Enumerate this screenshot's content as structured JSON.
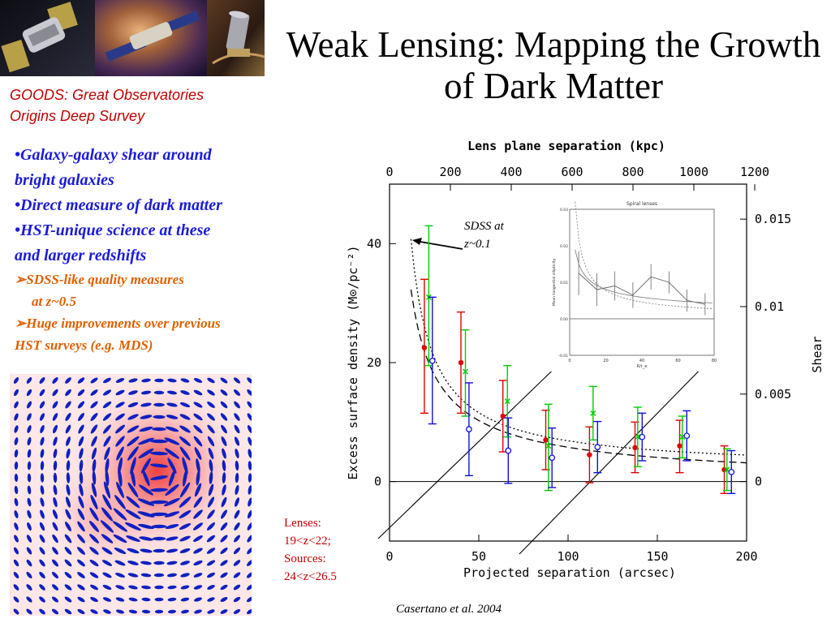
{
  "slide": {
    "title": "Weak Lensing: Mapping the Growth of Dark Matter",
    "goods_line1": "GOODS: Great Observatories",
    "goods_line2": "Origins Deep Survey",
    "bullets": {
      "b1_line1": "•Galaxy-galaxy shear around",
      "b1_line2": "bright galaxies",
      "b2": "•Direct measure of dark matter",
      "b3_line1": "•HST-unique science at these",
      "b3_line2": "and larger redshifts",
      "s1_line1": "SDSS-like quality measures",
      "s1_line2": "at z~0.5",
      "s2_line1": "Huge improvements over  previous",
      "s2_line2": "HST surveys (e.g. MDS)"
    },
    "lenses": {
      "line1": "Lenses:",
      "line2": "19<z<22;",
      "line3": "Sources:",
      "line4": "24<z<26.5"
    },
    "citation": "Casertano et al. 2004",
    "sdss_label_line1": "SDSS at",
    "sdss_label_line2": "z~0.1"
  },
  "chart_data": [
    {
      "type": "scatter",
      "title": "",
      "xlabel": "Projected separation (arcsec)",
      "ylabel": "Excess surface density (M⊙/pc⁻²)",
      "top_axis_label": "Lens plane separation (kpc)",
      "right_axis_label": "Shear",
      "xlim": [
        0,
        200
      ],
      "ylim": [
        -10,
        50
      ],
      "x_ticks": [
        0,
        50,
        100,
        150,
        200
      ],
      "y_ticks": [
        0,
        20,
        40
      ],
      "top_ticks": [
        0,
        200,
        400,
        600,
        800,
        1000,
        1200
      ],
      "top_xlim": [
        0,
        1200
      ],
      "right_ticks": [
        0,
        0.005,
        0.01,
        0.015
      ],
      "right_ylim": [
        -0.0034,
        0.017
      ],
      "series": [
        {
          "color": "#e00000",
          "marker": "filled-circle",
          "points": [
            {
              "x": 19.5,
              "y": 22.5,
              "lo": 11.5,
              "hi": 34
            },
            {
              "x": 40,
              "y": 20,
              "lo": 11.5,
              "hi": 28.5
            },
            {
              "x": 63.5,
              "y": 11,
              "lo": 5,
              "hi": 17
            },
            {
              "x": 87.5,
              "y": 7,
              "lo": 2,
              "hi": 12
            },
            {
              "x": 112,
              "y": 4.5,
              "lo": -0.2,
              "hi": 9.2
            },
            {
              "x": 137.5,
              "y": 5.7,
              "lo": 1.5,
              "hi": 10
            },
            {
              "x": 162.5,
              "y": 6,
              "lo": 1.5,
              "hi": 10.3
            },
            {
              "x": 187.5,
              "y": 2,
              "lo": -2,
              "hi": 6
            }
          ]
        },
        {
          "color": "#00cc00",
          "marker": "cross",
          "points": [
            {
              "x": 22,
              "y": 31,
              "lo": 19.5,
              "hi": 43
            },
            {
              "x": 42.5,
              "y": 18.5,
              "lo": 11,
              "hi": 25.5
            },
            {
              "x": 66,
              "y": 13.5,
              "lo": 7.5,
              "hi": 19.5
            },
            {
              "x": 89,
              "y": 6,
              "lo": -1.5,
              "hi": 13
            },
            {
              "x": 114,
              "y": 11.5,
              "lo": 7,
              "hi": 16
            },
            {
              "x": 139,
              "y": 7.5,
              "lo": 2.5,
              "hi": 12.5
            },
            {
              "x": 164,
              "y": 7.5,
              "lo": 4,
              "hi": 11
            },
            {
              "x": 189,
              "y": 2,
              "lo": -1.5,
              "hi": 5.5
            }
          ]
        },
        {
          "color": "#1010e0",
          "marker": "open-circle",
          "points": [
            {
              "x": 24,
              "y": 20.3,
              "lo": 9.7,
              "hi": 31
            },
            {
              "x": 44.5,
              "y": 8.8,
              "lo": 1,
              "hi": 16.6
            },
            {
              "x": 66.5,
              "y": 5.2,
              "lo": -0.3,
              "hi": 10.7
            },
            {
              "x": 91,
              "y": 4,
              "lo": -1,
              "hi": 9
            },
            {
              "x": 116.5,
              "y": 5.8,
              "lo": 1.5,
              "hi": 10.1
            },
            {
              "x": 141.5,
              "y": 7.5,
              "lo": 3.5,
              "hi": 11.5
            },
            {
              "x": 166.5,
              "y": 7.7,
              "lo": 3.5,
              "hi": 11.9
            },
            {
              "x": 191.5,
              "y": 1.6,
              "lo": -2,
              "hi": 5.2
            }
          ]
        }
      ],
      "model_curves": [
        "dashed",
        "dotted"
      ]
    },
    {
      "type": "line",
      "title": "Spiral lenses",
      "xlabel": "R/r_e",
      "ylabel": "Mean tangential ellipticity",
      "xlim": [
        0,
        80
      ],
      "ylim": [
        -0.01,
        0.03
      ],
      "x_ticks": [
        0,
        20,
        40,
        60,
        80
      ],
      "y_ticks": [
        -0.01,
        0,
        0.01,
        0.02,
        0.03
      ],
      "data": {
        "x": [
          5,
          15,
          25,
          35,
          45,
          55,
          65,
          75
        ],
        "y": [
          0.0125,
          0.008,
          0.009,
          0.0065,
          0.0115,
          0.01,
          0.005,
          0.004
        ],
        "err": [
          0.006,
          0.0045,
          0.004,
          0.0035,
          0.0035,
          0.003,
          0.003,
          0.003
        ]
      }
    }
  ],
  "images": {
    "satellite_photos": [
      "satellite-1",
      "satellite-2",
      "space-telescope"
    ],
    "shear_field": "simulated-shear-map"
  },
  "colors": {
    "goods_text": "#c00000",
    "bullet_blue": "#1b1bd6",
    "bullet_orange": "#e06000",
    "red_series": "#e00000",
    "green_series": "#00cc00",
    "blue_series": "#1010e0"
  }
}
